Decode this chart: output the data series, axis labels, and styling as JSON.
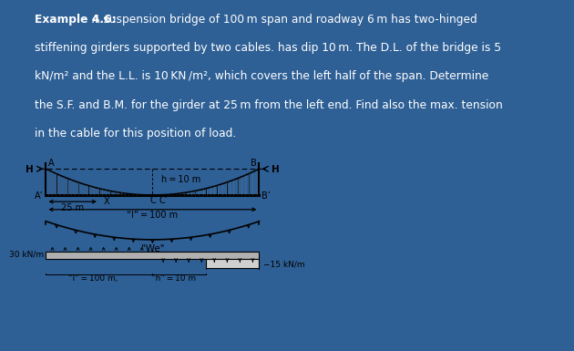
{
  "bg_color": "#2e6096",
  "diagram_bg": "#f2ede6",
  "title_bold": "Example 4.6:",
  "title_normal": "A suspension bridge of 100 m span and roadway 6 m has two-hinged\nstiffening girders supported by two cables. has dip 10 m. The D.L. of the bridge is 5\nkN/m² and the L.L. is 10 KN /m², which covers the left half of the span. Determine\nthe S.F. and B.M. for the girder at 25 m from the left end. Find also the max. tension\nin the cable for this position of load.",
  "label_H": "H",
  "label_A": "A",
  "label_B": "B",
  "label_Ap": "A’",
  "label_Bp": "B’",
  "label_C": "C",
  "label_Cp": "C’",
  "label_h": "h = 10 m",
  "label_25": "25 m",
  "label_X": "X",
  "label_l100": "“l” = 100 m",
  "label_We": "\"We\"",
  "label_30kN": "30 kN/m",
  "label_15kN": "−15 kN/m",
  "label_l100b": "“l” = 100 m,",
  "label_h10": "“h” = 10 m"
}
